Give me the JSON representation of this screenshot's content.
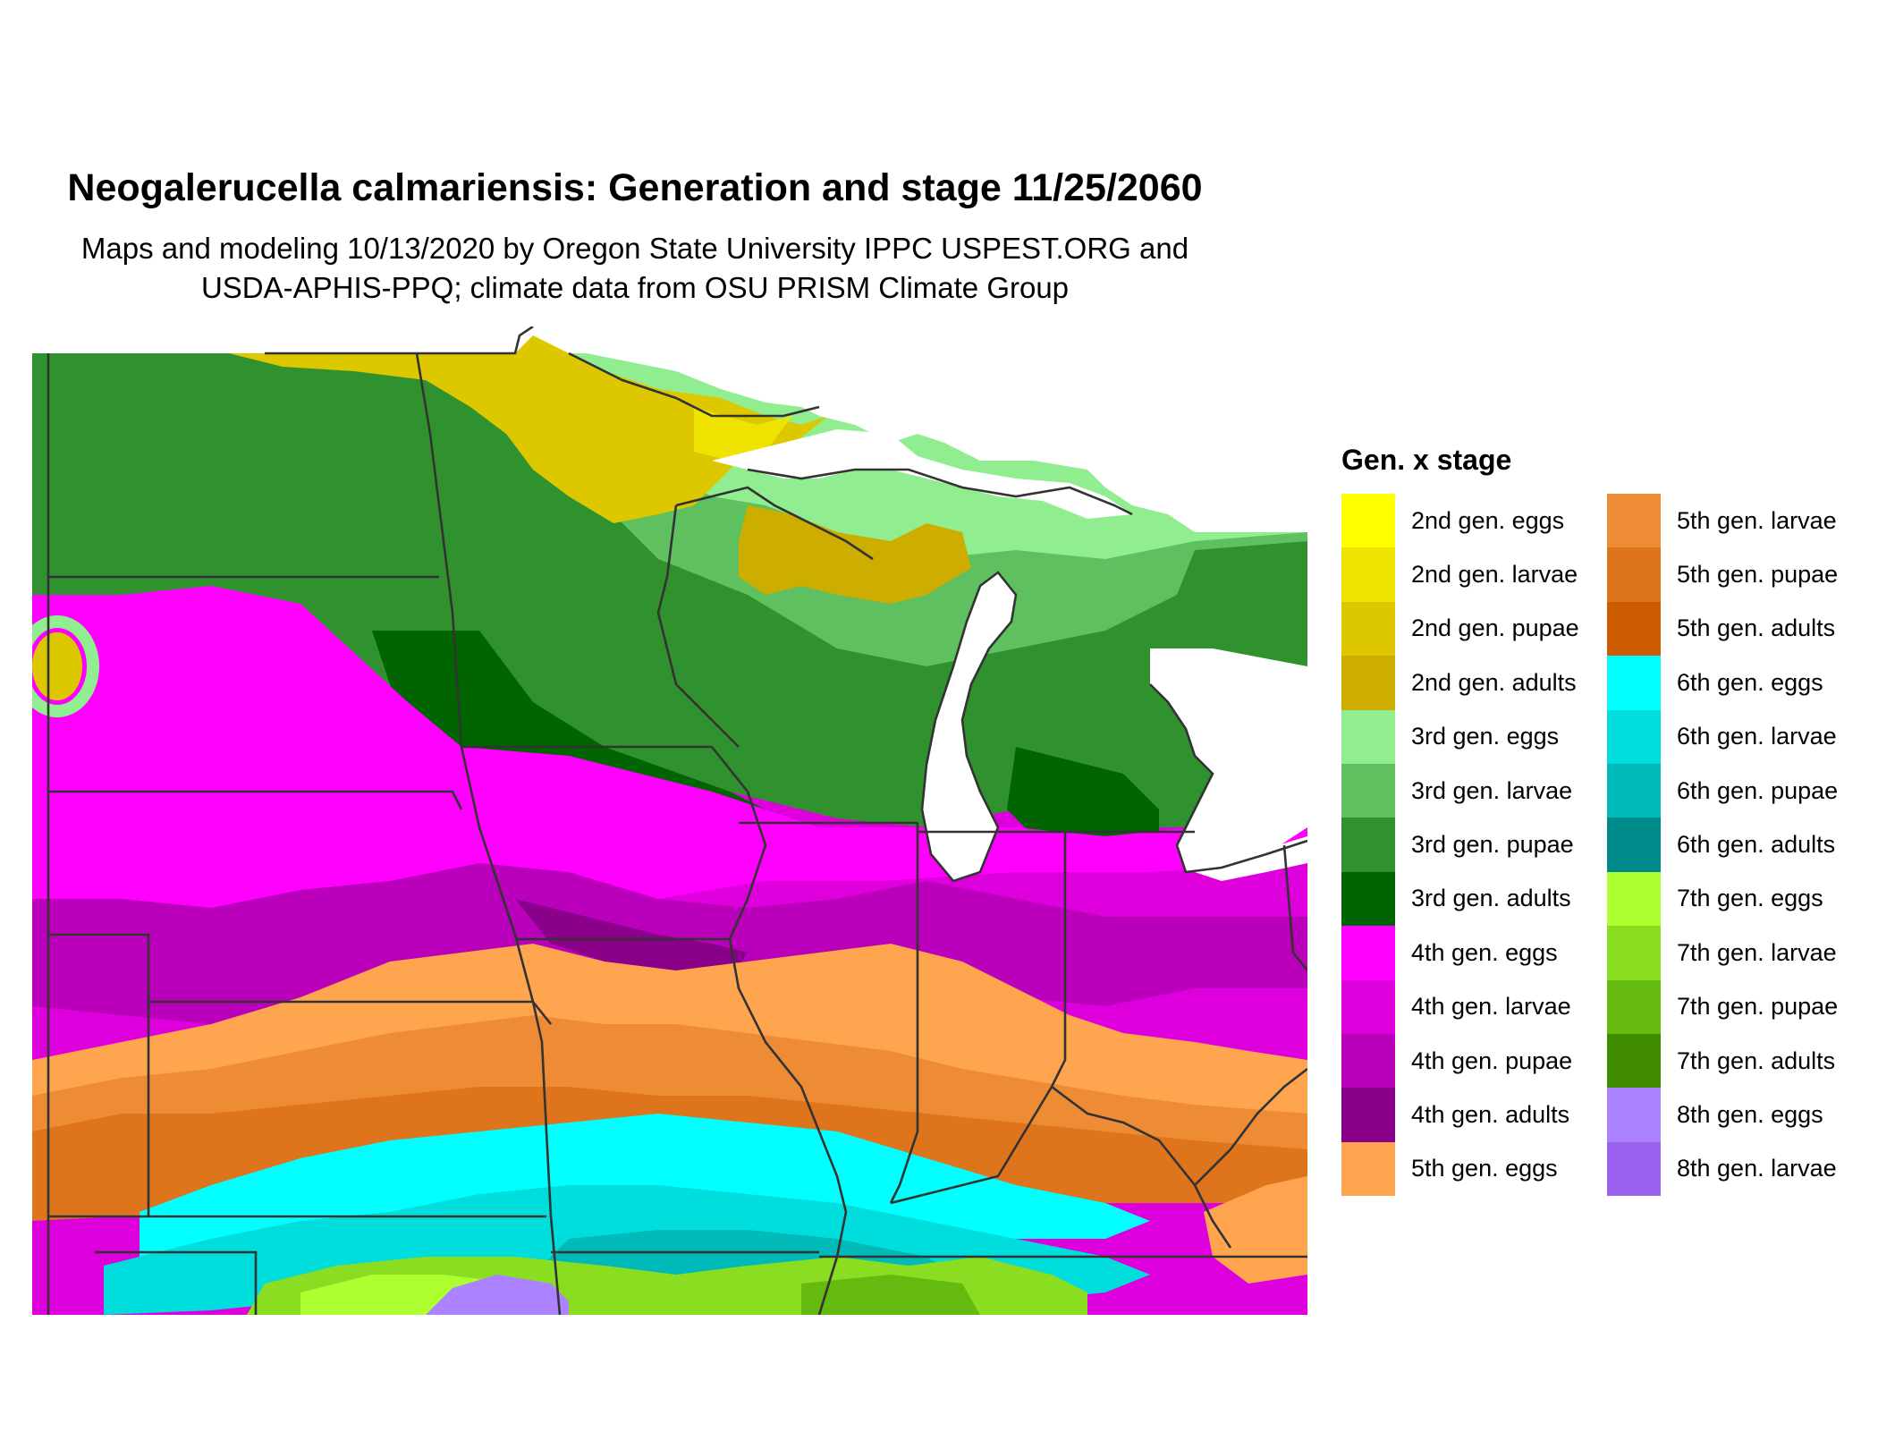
{
  "title": "Neogalerucella calmariensis: Generation and stage 11/25/2060",
  "subtitle_line1": "Maps and modeling 10/13/2020 by Oregon State University IPPC USPEST.ORG and",
  "subtitle_line2": "USDA-APHIS-PPQ; climate data from OSU PRISM Climate Group",
  "legend": {
    "title": "Gen. x stage",
    "column1": [
      {
        "label": "2nd gen. eggs",
        "color": "#ffff00"
      },
      {
        "label": "2nd gen. larvae",
        "color": "#eee400"
      },
      {
        "label": "2nd gen. pupae",
        "color": "#ddc800"
      },
      {
        "label": "2nd gen. adults",
        "color": "#ccad00"
      },
      {
        "label": "3rd gen. eggs",
        "color": "#90ee90"
      },
      {
        "label": "3rd gen. larvae",
        "color": "#5fc05f"
      },
      {
        "label": "3rd gen. pupae",
        "color": "#2f922f"
      },
      {
        "label": "3rd gen. adults",
        "color": "#006400"
      },
      {
        "label": "4th gen. eggs",
        "color": "#ff00ff"
      },
      {
        "label": "4th gen. larvae",
        "color": "#dd00dd"
      },
      {
        "label": "4th gen. pupae",
        "color": "#ba00ba"
      },
      {
        "label": "4th gen. adults",
        "color": "#8b008b"
      },
      {
        "label": "5th gen. eggs",
        "color": "#ffa54f"
      }
    ],
    "column2": [
      {
        "label": "5th gen. larvae",
        "color": "#ee8c36"
      },
      {
        "label": "5th gen. pupae",
        "color": "#de741c"
      },
      {
        "label": "5th gen. adults",
        "color": "#cd5c00"
      },
      {
        "label": "6th gen. eggs",
        "color": "#00ffff"
      },
      {
        "label": "6th gen. larvae",
        "color": "#00dddd"
      },
      {
        "label": "6th gen. pupae",
        "color": "#00b9b9"
      },
      {
        "label": "6th gen. adults",
        "color": "#008b8b"
      },
      {
        "label": "7th gen. eggs",
        "color": "#adff2f"
      },
      {
        "label": "7th gen. larvae",
        "color": "#8bdd21"
      },
      {
        "label": "7th gen. pupae",
        "color": "#65ba0f"
      },
      {
        "label": "7th gen. adults",
        "color": "#3f8b00"
      },
      {
        "label": "8th gen. eggs",
        "color": "#ab82ff"
      },
      {
        "label": "8th gen. larvae",
        "color": "#9a60ee"
      }
    ]
  }
}
